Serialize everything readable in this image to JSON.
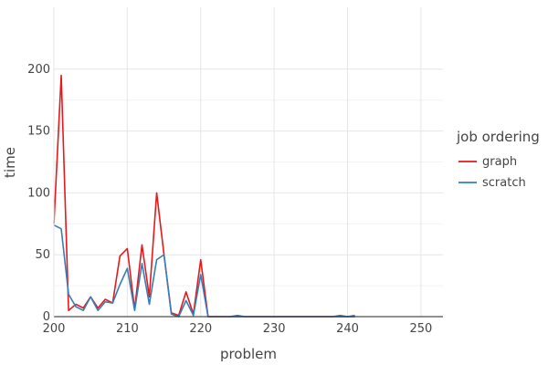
{
  "chart_data": {
    "type": "line",
    "xlabel": "problem",
    "ylabel": "time",
    "xlim": [
      200,
      253
    ],
    "ylim": [
      0,
      250
    ],
    "xticks": [
      200,
      210,
      220,
      230,
      240,
      250
    ],
    "yticks": [
      0,
      50,
      100,
      150,
      200
    ],
    "grid": true,
    "legend": {
      "title": "job ordering",
      "placement": "right"
    },
    "series": [
      {
        "name": "graph",
        "color": "#e41a1c",
        "points": [
          [
            200,
            75
          ],
          [
            201,
            195
          ],
          [
            202,
            5
          ],
          [
            203,
            10
          ],
          [
            204,
            7
          ],
          [
            205,
            16
          ],
          [
            206,
            7
          ],
          [
            207,
            14
          ],
          [
            208,
            11
          ],
          [
            209,
            49
          ],
          [
            210,
            55
          ],
          [
            211,
            6
          ],
          [
            212,
            58
          ],
          [
            213,
            16
          ],
          [
            214,
            100
          ],
          [
            215,
            50
          ],
          [
            216,
            3
          ],
          [
            217,
            1
          ],
          [
            218,
            20
          ],
          [
            219,
            2
          ],
          [
            220,
            46
          ],
          [
            221,
            0
          ],
          [
            222,
            0
          ],
          [
            223,
            0
          ],
          [
            224,
            0
          ],
          [
            225,
            0
          ],
          [
            226,
            0
          ],
          [
            227,
            0
          ],
          [
            228,
            0
          ],
          [
            229,
            0
          ],
          [
            230,
            0
          ],
          [
            231,
            0
          ],
          [
            232,
            0
          ],
          [
            233,
            0
          ],
          [
            234,
            0
          ],
          [
            235,
            0
          ],
          [
            236,
            0
          ],
          [
            237,
            0
          ],
          [
            238,
            0
          ],
          [
            239,
            0
          ],
          [
            240,
            0
          ],
          [
            241,
            0
          ]
        ]
      },
      {
        "name": "scratch",
        "color": "#377eb8",
        "points": [
          [
            200,
            74
          ],
          [
            201,
            71
          ],
          [
            202,
            18
          ],
          [
            203,
            8
          ],
          [
            204,
            5
          ],
          [
            205,
            16
          ],
          [
            206,
            5
          ],
          [
            207,
            12
          ],
          [
            208,
            11
          ],
          [
            209,
            26
          ],
          [
            210,
            39
          ],
          [
            211,
            5
          ],
          [
            212,
            43
          ],
          [
            213,
            10
          ],
          [
            214,
            46
          ],
          [
            215,
            50
          ],
          [
            216,
            2
          ],
          [
            217,
            0
          ],
          [
            218,
            13
          ],
          [
            219,
            1
          ],
          [
            220,
            34
          ],
          [
            221,
            0
          ],
          [
            222,
            0
          ],
          [
            223,
            0
          ],
          [
            224,
            0
          ],
          [
            225,
            1
          ],
          [
            226,
            0
          ],
          [
            227,
            0
          ],
          [
            228,
            0
          ],
          [
            229,
            0
          ],
          [
            230,
            0
          ],
          [
            231,
            0
          ],
          [
            232,
            0
          ],
          [
            233,
            0
          ],
          [
            234,
            0
          ],
          [
            235,
            0
          ],
          [
            236,
            0
          ],
          [
            237,
            0
          ],
          [
            238,
            0
          ],
          [
            239,
            1
          ],
          [
            240,
            0
          ],
          [
            241,
            1
          ]
        ]
      }
    ]
  }
}
